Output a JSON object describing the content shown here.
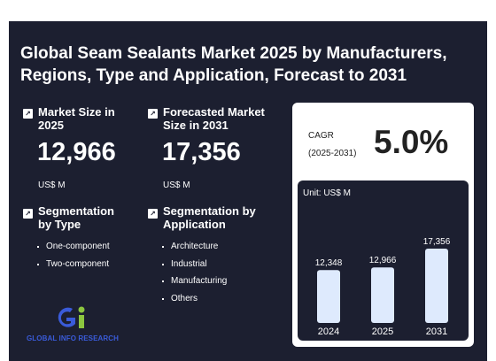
{
  "report": {
    "title": "Global Seam Sealants Market 2025 by Manufacturers, Regions, Type and Application, Forecast to 2031"
  },
  "market_size": {
    "label": "Market Size in 2025",
    "value": "12,966",
    "unit": "US$ M"
  },
  "forecast": {
    "label": "Forecasted Market Size in 2031",
    "value": "17,356",
    "unit": "US$ M"
  },
  "segmentation_type": {
    "label": "Segmentation by Type",
    "items": [
      "One-component",
      "Two-component"
    ]
  },
  "segmentation_application": {
    "label": "Segmentation by Application",
    "items": [
      "Architecture",
      "Industrial",
      "Manufacturing",
      "Others"
    ]
  },
  "cagr": {
    "label": "CAGR",
    "period": "(2025-2031)",
    "value": "5.0%"
  },
  "brand": {
    "logo_text": "GLOBAL INFO RESEARCH",
    "colors": {
      "blue": "#3a5bd9",
      "green": "#8cc63f"
    }
  },
  "colors": {
    "background": "#1c1f30",
    "bar": "#deeafd"
  },
  "chart_data": {
    "type": "bar",
    "unit_label": "Unit: US$ M",
    "categories": [
      "2024",
      "2025",
      "2031"
    ],
    "values": [
      12348,
      12966,
      17356
    ],
    "value_labels": [
      "12,348",
      "12,966",
      "17,356"
    ],
    "ylim": [
      0,
      19000
    ],
    "grid": false
  }
}
